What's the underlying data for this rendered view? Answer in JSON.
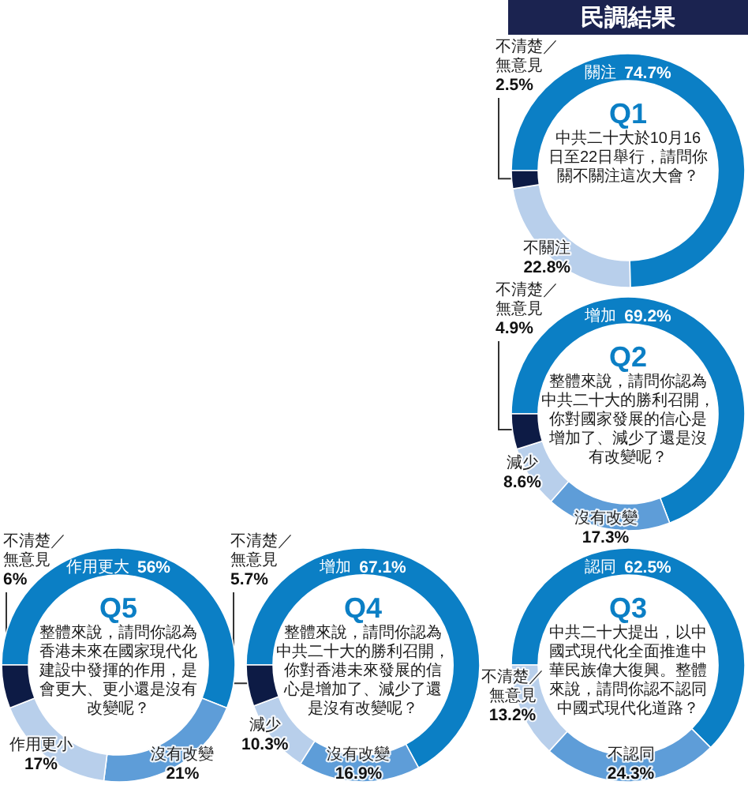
{
  "chart_data": [
    {
      "type": "other",
      "title": "民調結果"
    },
    {
      "type": "donut",
      "title": "Q1",
      "subtitle": "中共二十大於10月16日至22日舉行，請問你關不關注這次大會？",
      "categories": [
        "關注",
        "不關注",
        "不清楚／無意見"
      ],
      "values": [
        74.7,
        22.8,
        2.5
      ],
      "value_labels": [
        "74.7%",
        "22.8%",
        "2.5%"
      ],
      "colors": [
        "#0b7fc5",
        "#b8cfeb",
        "#0d1b45"
      ]
    },
    {
      "type": "donut",
      "title": "Q2",
      "subtitle": "整體來說，請問你認為中共二十大的勝利召開，你對國家發展的信心是增加了、減少了還是沒有改變呢？",
      "categories": [
        "增加",
        "沒有改變",
        "減少",
        "不清楚／無意見"
      ],
      "values": [
        69.2,
        17.3,
        8.6,
        4.9
      ],
      "value_labels": [
        "69.2%",
        "17.3%",
        "8.6%",
        "4.9%"
      ],
      "colors": [
        "#0b7fc5",
        "#5e9dd8",
        "#b8cfeb",
        "#0d1b45"
      ]
    },
    {
      "type": "donut",
      "title": "Q3",
      "subtitle": "中共二十大提出，以中國式現代化全面推進中華民族偉大復興。整體來說，請問你認不認同中國式現代化道路？",
      "categories": [
        "認同",
        "不認同",
        "不清楚／無意見"
      ],
      "values": [
        62.5,
        24.3,
        13.2
      ],
      "value_labels": [
        "62.5%",
        "24.3%",
        "13.2%"
      ],
      "colors": [
        "#0b7fc5",
        "#5e9dd8",
        "#b8cfeb"
      ]
    },
    {
      "type": "donut",
      "title": "Q4",
      "subtitle": "整體來說，請問你認為中共二十大的勝利召開，你對香港未來發展的信心是增加了、減少了還是沒有改變呢？",
      "categories": [
        "增加",
        "沒有改變",
        "減少",
        "不清楚／無意見"
      ],
      "values": [
        67.1,
        16.9,
        10.3,
        5.7
      ],
      "value_labels": [
        "67.1%",
        "16.9%",
        "10.3%",
        "5.7%"
      ],
      "colors": [
        "#0b7fc5",
        "#5e9dd8",
        "#b8cfeb",
        "#0d1b45"
      ]
    },
    {
      "type": "donut",
      "title": "Q5",
      "subtitle": "整體來說，請問你認為香港未來在國家現代化建設中發揮的作用，是會更大、更小還是沒有改變呢？",
      "categories": [
        "作用更大",
        "沒有改變",
        "作用更小",
        "不清楚／無意見"
      ],
      "values": [
        56,
        21,
        17,
        6
      ],
      "value_labels": [
        "56%",
        "21%",
        "17%",
        "6%"
      ],
      "colors": [
        "#0b7fc5",
        "#5e9dd8",
        "#b8cfeb",
        "#0d1b45"
      ]
    }
  ]
}
